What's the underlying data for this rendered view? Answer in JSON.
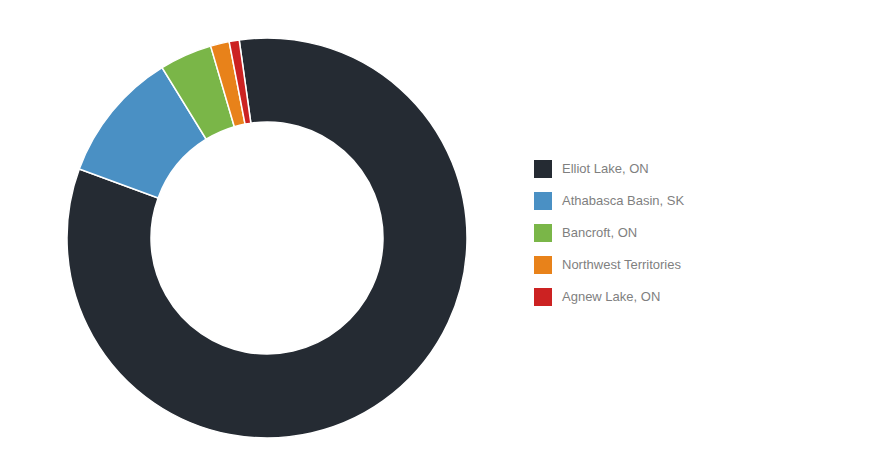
{
  "chart_data": {
    "type": "donut",
    "categories": [
      "Elliot Lake, ON",
      "Athabasca Basin, SK",
      "Bancroft, ON",
      "Northwest Territories",
      "Agnew Lake, ON"
    ],
    "values": [
      82.0,
      10.5,
      4.2,
      1.5,
      0.8
    ],
    "colors": [
      "#252b33",
      "#4a90c4",
      "#7ab648",
      "#e8821a",
      "#cc2222"
    ],
    "legend": "right"
  }
}
